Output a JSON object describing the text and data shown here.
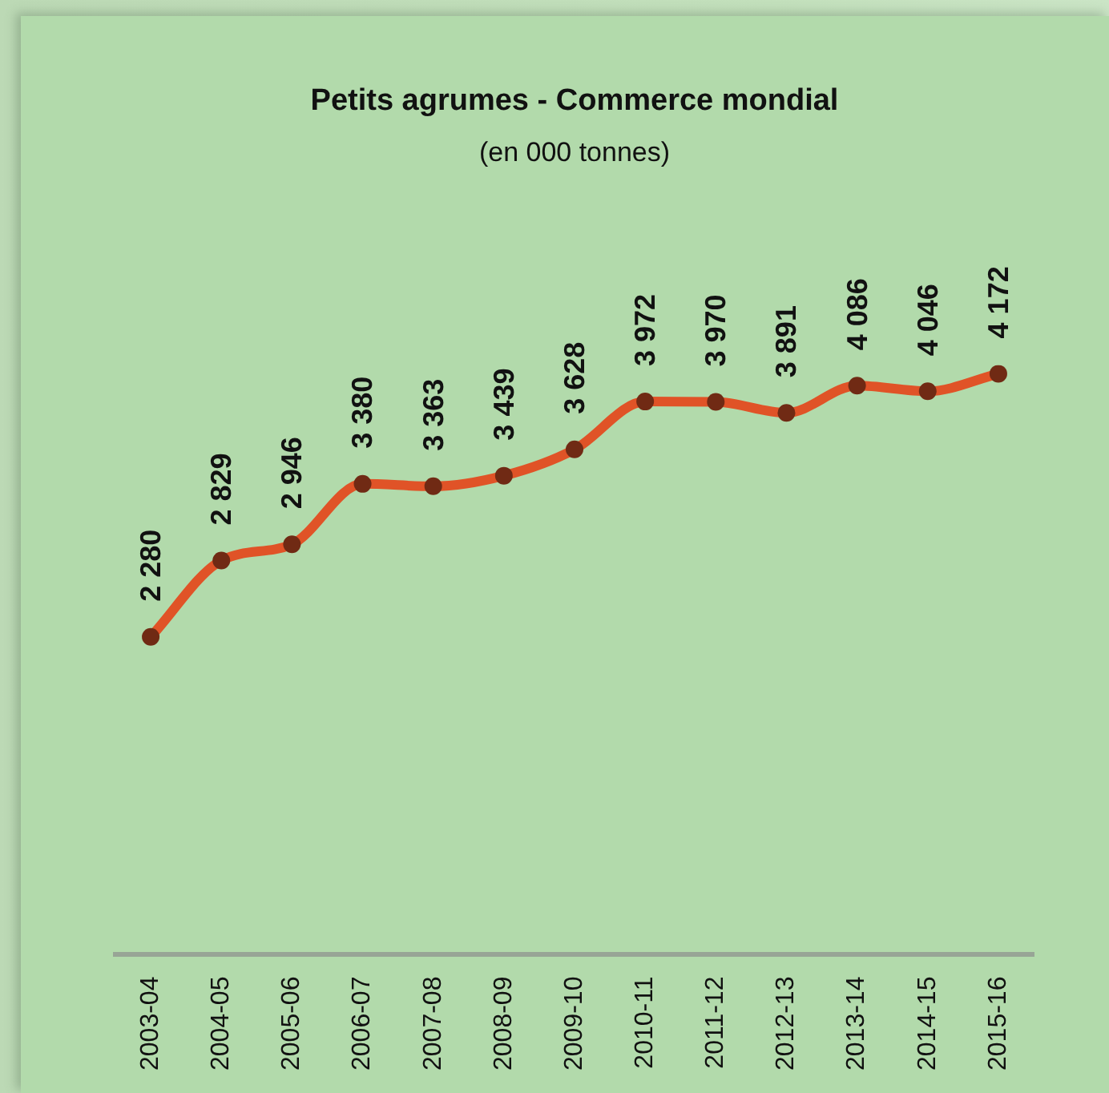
{
  "chart_data": {
    "type": "line",
    "title": "Petits agrumes - Commerce mondial",
    "subtitle": "(en 000 tonnes)",
    "categories": [
      "2003-04",
      "2004-05",
      "2005-06",
      "2006-07",
      "2007-08",
      "2008-09",
      "2009-10",
      "2010-11",
      "2011-12",
      "2012-13",
      "2013-14",
      "2014-15",
      "2015-16"
    ],
    "series": [
      {
        "color": "#e05327",
        "values": [
          2280,
          2829,
          2946,
          3380,
          3363,
          3439,
          3628,
          3972,
          3970,
          3891,
          4086,
          4046,
          4172
        ],
        "value_labels": [
          "2 280",
          "2 829",
          "2 946",
          "3 380",
          "3 363",
          "3 439",
          "3 628",
          "3 972",
          "3 970",
          "3 891",
          "4 086",
          "4 046",
          "4 172"
        ]
      }
    ],
    "tick_labels": "x",
    "marker": "circle",
    "line_style": "solid"
  }
}
